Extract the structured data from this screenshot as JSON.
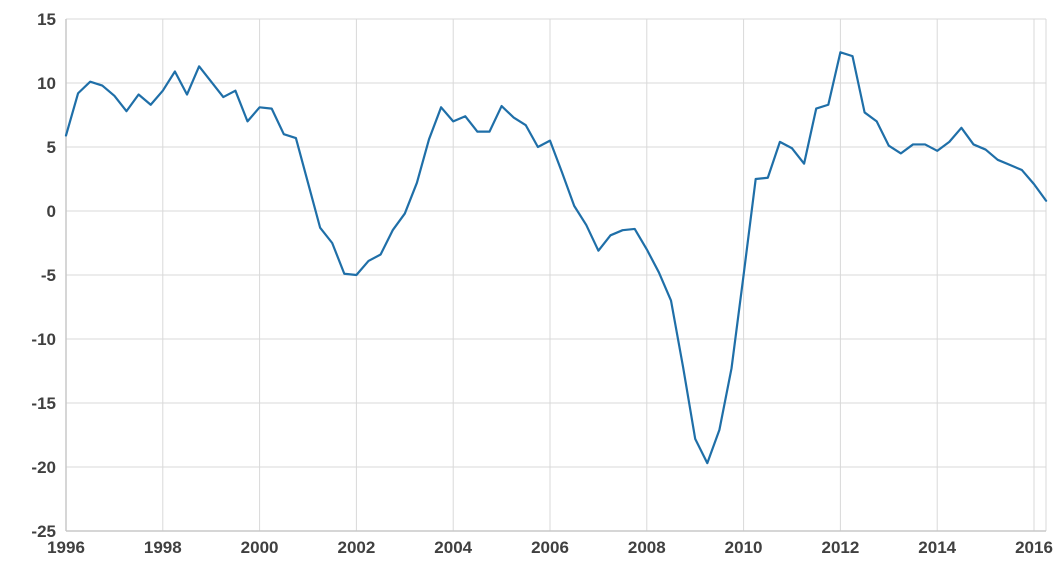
{
  "chart_data": {
    "type": "line",
    "title": "",
    "xlabel": "",
    "ylabel": "",
    "xlim": [
      1996,
      2016.3
    ],
    "ylim": [
      -25,
      15
    ],
    "grid": {
      "vertical": true,
      "horizontal": true
    },
    "legend": "none",
    "colors": {
      "line": "#1f6fa8",
      "grid": "#d9d9d9",
      "axis": "#c8c8c8",
      "tick_text": "#404040"
    },
    "x_ticks": [
      1996,
      1998,
      2000,
      2002,
      2004,
      2006,
      2008,
      2010,
      2012,
      2014,
      2016
    ],
    "x_tick_labels": [
      "1996",
      "1998",
      "2000",
      "2002",
      "2004",
      "2006",
      "2008",
      "2010",
      "2012",
      "2014",
      "2016"
    ],
    "y_ticks": [
      15,
      10,
      5,
      0,
      -5,
      -10,
      -15,
      -20,
      -25
    ],
    "y_tick_labels": [
      "15",
      "10",
      "5",
      "0",
      "-5",
      "-10",
      "-15",
      "-20",
      "-25"
    ],
    "series": [
      {
        "x": [
          1996.0,
          1996.25,
          1996.5,
          1996.75,
          1997.0,
          1997.25,
          1997.5,
          1997.75,
          1998.0,
          1998.25,
          1998.5,
          1998.75,
          1999.0,
          1999.25,
          1999.5,
          1999.75,
          2000.0,
          2000.25,
          2000.5,
          2000.75,
          2001.0,
          2001.25,
          2001.5,
          2001.75,
          2002.0,
          2002.25,
          2002.5,
          2002.75,
          2003.0,
          2003.25,
          2003.5,
          2003.75,
          2004.0,
          2004.25,
          2004.5,
          2004.75,
          2005.0,
          2005.25,
          2005.5,
          2005.75,
          2006.0,
          2006.25,
          2006.5,
          2006.75,
          2007.0,
          2007.25,
          2007.5,
          2007.75,
          2008.0,
          2008.25,
          2008.5,
          2008.75,
          2009.0,
          2009.25,
          2009.5,
          2009.75,
          2010.0,
          2010.25,
          2010.5,
          2010.75,
          2011.0,
          2011.25,
          2011.5,
          2011.75,
          2012.0,
          2012.25,
          2012.5,
          2012.75,
          2013.0,
          2013.25,
          2013.5,
          2013.75,
          2014.0,
          2014.25,
          2014.5,
          2014.75,
          2015.0,
          2015.25,
          2015.5,
          2015.75,
          2016.0,
          2016.25
        ],
        "y": [
          5.9,
          9.2,
          10.1,
          9.8,
          9.0,
          7.8,
          9.1,
          8.3,
          9.4,
          10.9,
          9.1,
          11.3,
          10.1,
          8.9,
          9.4,
          7.0,
          8.1,
          8.0,
          6.0,
          5.7,
          2.2,
          -1.3,
          -2.5,
          -4.9,
          -5.0,
          -3.9,
          -3.4,
          -1.5,
          -0.2,
          2.2,
          5.6,
          8.1,
          7.0,
          7.4,
          6.2,
          6.2,
          8.2,
          7.3,
          6.7,
          5.0,
          5.5,
          3.0,
          0.4,
          -1.1,
          -3.1,
          -1.9,
          -1.5,
          -1.4,
          -3.0,
          -4.8,
          -7.0,
          -12.2,
          -17.8,
          -19.7,
          -17.1,
          -12.3,
          -5.0,
          2.5,
          2.6,
          5.4,
          4.9,
          3.7,
          8.0,
          8.3,
          12.4,
          12.1,
          7.7,
          7.0,
          5.1,
          4.5,
          5.2,
          5.2,
          4.7,
          5.4,
          6.5,
          5.2,
          4.8,
          4.0,
          3.6,
          3.2,
          2.1,
          0.8
        ]
      }
    ]
  }
}
